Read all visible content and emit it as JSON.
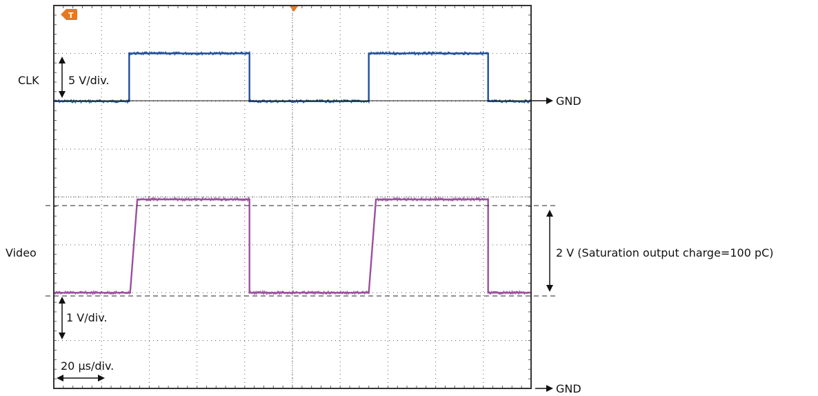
{
  "labels": {
    "clk": "CLK",
    "video": "Video",
    "gnd_clk": "GND",
    "gnd_video": "GND",
    "clk_scale": "5 V/div.",
    "video_scale": "1 V/div.",
    "time_scale": "20 µs/div.",
    "amplitude": "2 V (Saturation output charge=100 pC)"
  },
  "colors": {
    "clk_trace": "#1f4e99",
    "video_trace": "#9b4f9e",
    "trigger_marker": "#e87722",
    "grid": "#555555",
    "frame": "#333333"
  },
  "icons": {
    "trigger": "trigger-t-icon",
    "trigger_position": "trigger-arrow-icon"
  },
  "chart_data": {
    "type": "line",
    "xlabel": "",
    "ylabel": "",
    "x_divisions": 10,
    "y_divisions": 8,
    "xlim": [
      0,
      10
    ],
    "ylim": [
      0,
      8
    ],
    "grid": true,
    "series": [
      {
        "name": "CLK",
        "x": [
          0,
          1.58,
          1.58,
          4.1,
          4.1,
          6.6,
          6.6,
          9.1,
          9.1,
          10
        ],
        "y": [
          6.0,
          6.0,
          7.0,
          7.0,
          6.0,
          6.0,
          7.0,
          7.0,
          6.0,
          6.0
        ]
      },
      {
        "name": "Video",
        "x": [
          0,
          1.6,
          1.75,
          4.1,
          4.1,
          6.6,
          6.75,
          9.1,
          9.1,
          10
        ],
        "y": [
          2.0,
          2.0,
          3.95,
          3.95,
          2.0,
          2.0,
          3.95,
          3.95,
          2.0,
          2.0
        ]
      }
    ]
  }
}
